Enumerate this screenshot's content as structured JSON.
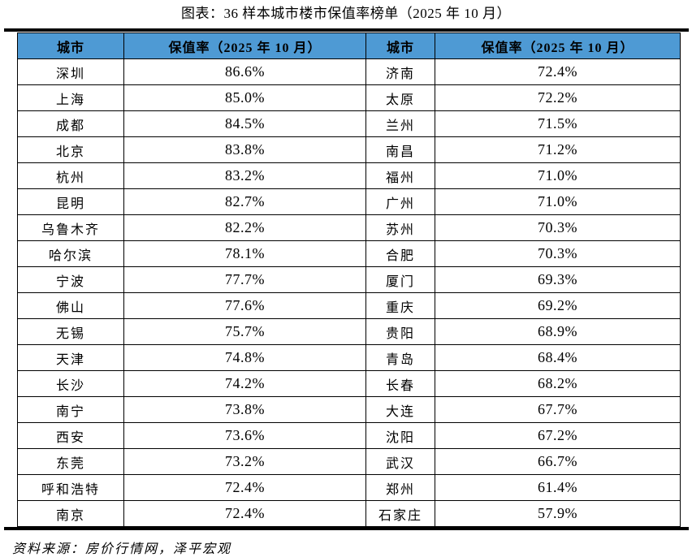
{
  "page": {
    "title": "图表：36 样本城市楼市保值率榜单（2025 年 10 月）",
    "source_note": "资料来源：房价行情网，泽平宏观"
  },
  "colors": {
    "header_bg": "#4E9AD4",
    "border": "#000000",
    "text": "#000000"
  },
  "chart_data": {
    "type": "table",
    "title": "图表：36 样本城市楼市保值率榜单（2025 年 10 月）",
    "columns": [
      "城市",
      "保值率（2025 年 10 月）",
      "城市",
      "保值率（2025 年 10 月）"
    ],
    "rows": [
      [
        "深圳",
        "86.6%",
        "济南",
        "72.4%"
      ],
      [
        "上海",
        "85.0%",
        "太原",
        "72.2%"
      ],
      [
        "成都",
        "84.5%",
        "兰州",
        "71.5%"
      ],
      [
        "北京",
        "83.8%",
        "南昌",
        "71.2%"
      ],
      [
        "杭州",
        "83.2%",
        "福州",
        "71.0%"
      ],
      [
        "昆明",
        "82.7%",
        "广州",
        "71.0%"
      ],
      [
        "乌鲁木齐",
        "82.2%",
        "苏州",
        "70.3%"
      ],
      [
        "哈尔滨",
        "78.1%",
        "合肥",
        "70.3%"
      ],
      [
        "宁波",
        "77.7%",
        "厦门",
        "69.3%"
      ],
      [
        "佛山",
        "77.6%",
        "重庆",
        "69.2%"
      ],
      [
        "无锡",
        "75.7%",
        "贵阳",
        "68.9%"
      ],
      [
        "天津",
        "74.8%",
        "青岛",
        "68.4%"
      ],
      [
        "长沙",
        "74.2%",
        "长春",
        "68.2%"
      ],
      [
        "南宁",
        "73.8%",
        "大连",
        "67.7%"
      ],
      [
        "西安",
        "73.6%",
        "沈阳",
        "67.2%"
      ],
      [
        "东莞",
        "73.2%",
        "武汉",
        "66.7%"
      ],
      [
        "呼和浩特",
        "72.4%",
        "郑州",
        "61.4%"
      ],
      [
        "南京",
        "72.4%",
        "石家庄",
        "57.9%"
      ]
    ],
    "source": "资料来源：房价行情网，泽平宏观"
  }
}
